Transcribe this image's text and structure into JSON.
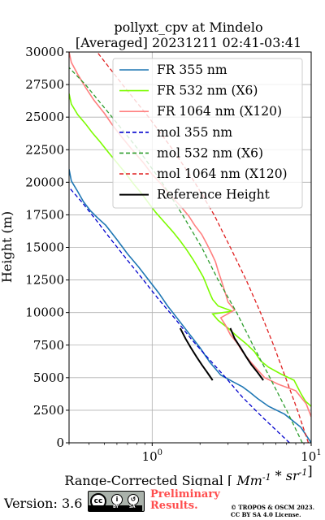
{
  "chart_data": {
    "type": "line",
    "title": "pollyxt_cpv at Mindelo",
    "subtitle": "[Averaged] 20231211 02:41-03:41",
    "xlabel": "Range-Corrected Signal [Mm^-1 * sr^-1]",
    "ylabel": "Height (m)",
    "xscale": "log",
    "xlim": [
      0.3,
      10
    ],
    "ylim": [
      0,
      30000
    ],
    "xticks": [
      {
        "value": 1,
        "mantissa": "10",
        "exponent": "0"
      },
      {
        "value": 10,
        "mantissa": "10",
        "exponent": "1"
      }
    ],
    "yticks": [
      0,
      2500,
      5000,
      7500,
      10000,
      12500,
      15000,
      17500,
      20000,
      22500,
      25000,
      27500,
      30000
    ],
    "grid": true,
    "legend_position": "top-right",
    "series": [
      {
        "name": "FR 355 nm",
        "style": "solid",
        "color": "#1f77b4",
        "points": [
          [
            10,
            0
          ],
          [
            8.6,
            1200
          ],
          [
            6.8,
            2200
          ],
          [
            5.4,
            2800
          ],
          [
            4.6,
            3400
          ],
          [
            4.1,
            3900
          ],
          [
            3.7,
            4300
          ],
          [
            3.2,
            4700
          ],
          [
            2.7,
            5200
          ],
          [
            2.3,
            6200
          ],
          [
            2.0,
            7300
          ],
          [
            1.7,
            8400
          ],
          [
            1.45,
            9500
          ],
          [
            1.25,
            10500
          ],
          [
            1.1,
            11500
          ],
          [
            0.95,
            12500
          ],
          [
            0.82,
            13500
          ],
          [
            0.7,
            14500
          ],
          [
            0.6,
            15600
          ],
          [
            0.51,
            16700
          ],
          [
            0.45,
            17300
          ],
          [
            0.41,
            17800
          ],
          [
            0.37,
            18500
          ],
          [
            0.34,
            19300
          ],
          [
            0.31,
            20100
          ],
          [
            0.3,
            21000
          ]
        ]
      },
      {
        "name": "FR 532 nm (X6)",
        "style": "solid",
        "color": "#7cfc00",
        "points": [
          [
            10,
            2800
          ],
          [
            9.2,
            3200
          ],
          [
            8.6,
            3800
          ],
          [
            8.2,
            4300
          ],
          [
            7.8,
            4800
          ],
          [
            6.4,
            5300
          ],
          [
            5.4,
            5800
          ],
          [
            4.8,
            6300
          ],
          [
            4.4,
            7000
          ],
          [
            3.9,
            7600
          ],
          [
            3.4,
            8200
          ],
          [
            3.0,
            8800
          ],
          [
            2.6,
            9400
          ],
          [
            2.4,
            9900
          ],
          [
            3.2,
            10100
          ],
          [
            2.6,
            10500
          ],
          [
            2.4,
            11000
          ],
          [
            2.3,
            11500
          ],
          [
            2.2,
            12100
          ],
          [
            2.1,
            12700
          ],
          [
            1.95,
            13400
          ],
          [
            1.8,
            14100
          ],
          [
            1.65,
            14800
          ],
          [
            1.5,
            15500
          ],
          [
            1.35,
            16200
          ],
          [
            1.2,
            16900
          ],
          [
            1.05,
            17700
          ],
          [
            0.95,
            18400
          ],
          [
            0.85,
            19200
          ],
          [
            0.76,
            19900
          ],
          [
            0.68,
            20700
          ],
          [
            0.6,
            21500
          ],
          [
            0.53,
            22300
          ],
          [
            0.47,
            23100
          ],
          [
            0.42,
            23800
          ],
          [
            0.38,
            24500
          ],
          [
            0.34,
            25200
          ],
          [
            0.31,
            26000
          ],
          [
            0.3,
            26800
          ]
        ]
      },
      {
        "name": "FR 1064 nm (X120)",
        "style": "solid",
        "color": "#ff7f7f",
        "points": [
          [
            10,
            2000
          ],
          [
            9.3,
            3000
          ],
          [
            8.0,
            4000
          ],
          [
            6.2,
            4500
          ],
          [
            5.1,
            5000
          ],
          [
            4.6,
            5600
          ],
          [
            4.1,
            6300
          ],
          [
            3.7,
            7000
          ],
          [
            3.4,
            7700
          ],
          [
            3.1,
            8300
          ],
          [
            2.9,
            9000
          ],
          [
            2.7,
            9600
          ],
          [
            3.3,
            10200
          ],
          [
            3.0,
            10800
          ],
          [
            2.9,
            11400
          ],
          [
            2.8,
            12000
          ],
          [
            2.7,
            12600
          ],
          [
            2.6,
            13200
          ],
          [
            2.5,
            13900
          ],
          [
            2.35,
            14600
          ],
          [
            2.2,
            15300
          ],
          [
            2.05,
            16000
          ],
          [
            1.85,
            16700
          ],
          [
            1.7,
            17400
          ],
          [
            1.5,
            18200
          ],
          [
            1.3,
            19000
          ],
          [
            1.15,
            19800
          ],
          [
            1.0,
            20600
          ],
          [
            0.88,
            21500
          ],
          [
            0.76,
            22400
          ],
          [
            0.66,
            23300
          ],
          [
            0.57,
            24300
          ],
          [
            0.5,
            25300
          ],
          [
            0.43,
            26300
          ],
          [
            0.38,
            27300
          ],
          [
            0.34,
            28300
          ],
          [
            0.31,
            29200
          ],
          [
            0.3,
            30000
          ]
        ]
      },
      {
        "name": "mol 355 nm",
        "style": "dashed",
        "color": "#0000cd",
        "points": [
          [
            7.3,
            0
          ],
          [
            4.9,
            2000
          ],
          [
            3.7,
            3500
          ],
          [
            2.9,
            5000
          ],
          [
            2.25,
            6500
          ],
          [
            1.75,
            8000
          ],
          [
            1.4,
            9500
          ],
          [
            1.1,
            11000
          ],
          [
            0.88,
            12500
          ],
          [
            0.7,
            14000
          ],
          [
            0.56,
            15500
          ],
          [
            0.45,
            17000
          ],
          [
            0.36,
            18500
          ],
          [
            0.3,
            19600
          ]
        ]
      },
      {
        "name": "mol 532 nm (X6)",
        "style": "dashed",
        "color": "#2e9e2e",
        "points": [
          [
            8.8,
            0
          ],
          [
            7.0,
            2500
          ],
          [
            5.5,
            5000
          ],
          [
            4.3,
            7500
          ],
          [
            3.4,
            10000
          ],
          [
            2.6,
            12500
          ],
          [
            2.05,
            15000
          ],
          [
            1.55,
            17500
          ],
          [
            1.15,
            20000
          ],
          [
            0.82,
            22500
          ],
          [
            0.56,
            25000
          ],
          [
            0.38,
            27500
          ],
          [
            0.3,
            28800
          ]
        ]
      },
      {
        "name": "mol 1064 nm (X120)",
        "style": "dashed",
        "color": "#e02020",
        "points": [
          [
            9.6,
            0
          ],
          [
            8.2,
            2500
          ],
          [
            6.9,
            5000
          ],
          [
            5.8,
            7500
          ],
          [
            4.8,
            10000
          ],
          [
            3.9,
            12500
          ],
          [
            3.1,
            15000
          ],
          [
            2.45,
            17500
          ],
          [
            1.85,
            20000
          ],
          [
            1.35,
            22500
          ],
          [
            0.95,
            25000
          ],
          [
            0.65,
            27500
          ],
          [
            0.45,
            30000
          ]
        ]
      },
      {
        "name": "Reference Height",
        "style": "solid",
        "color": "#000000",
        "segments": [
          [
            [
              1.5,
              8800
            ],
            [
              1.62,
              8000
            ],
            [
              1.75,
              7300
            ],
            [
              1.9,
              6600
            ],
            [
              2.05,
              6000
            ],
            [
              2.25,
              5300
            ],
            [
              2.4,
              4800
            ]
          ],
          [
            [
              3.1,
              8800
            ],
            [
              3.3,
              8000
            ],
            [
              3.6,
              7300
            ],
            [
              3.9,
              6600
            ],
            [
              4.2,
              6000
            ],
            [
              4.6,
              5400
            ],
            [
              5.0,
              4800
            ]
          ]
        ]
      }
    ]
  },
  "footer": {
    "version": "Version: 3.6",
    "license_badge": "cc BY SA",
    "preliminary_line1": "Preliminary",
    "preliminary_line2": "Results.",
    "credit_line1": "© TROPOS & OSCM 2023.",
    "credit_line2": "CC BY SA 4.0 License."
  }
}
